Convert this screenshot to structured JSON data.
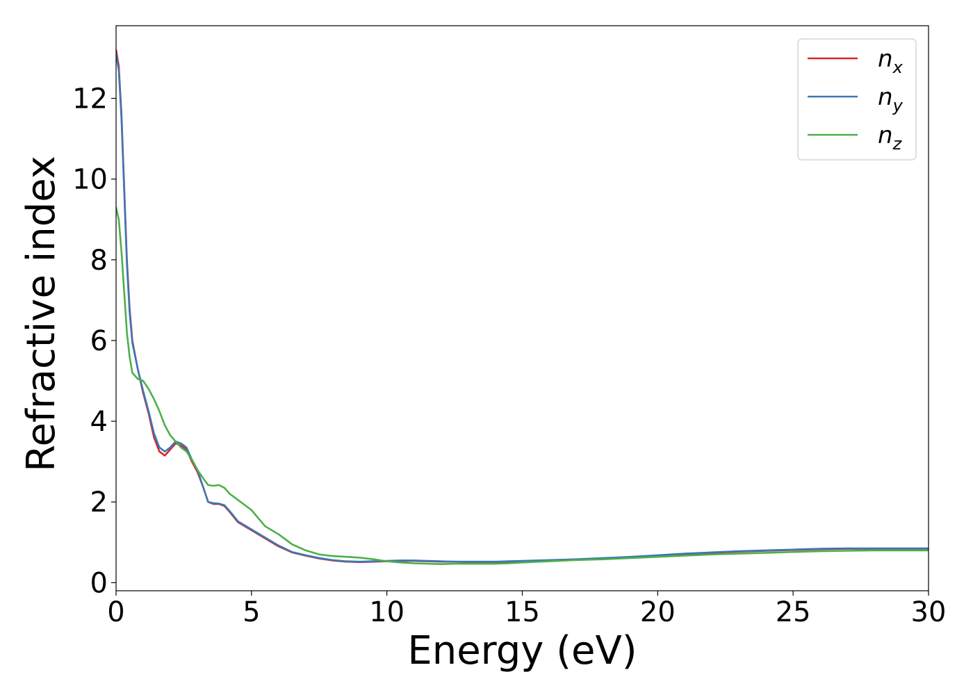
{
  "chart_data": {
    "type": "line",
    "xlabel": "Energy (eV)",
    "ylabel": "Refractive index",
    "xlim": [
      0,
      30
    ],
    "ylim": [
      -0.2,
      13.8
    ],
    "xticks": [
      0,
      5,
      10,
      15,
      20,
      25,
      30
    ],
    "xtick_labels": [
      "0",
      "5",
      "10",
      "15",
      "20",
      "25",
      "30"
    ],
    "yticks": [
      0,
      2,
      4,
      6,
      8,
      10,
      12
    ],
    "ytick_labels": [
      "0",
      "2",
      "4",
      "6",
      "8",
      "10",
      "12"
    ],
    "grid": false,
    "legend_position": "top-right",
    "series": [
      {
        "name": "n_x",
        "legend_base": "n",
        "legend_sub": "x",
        "color": "#d62728",
        "x": [
          0,
          0.1,
          0.2,
          0.3,
          0.4,
          0.5,
          0.6,
          0.8,
          1.0,
          1.2,
          1.4,
          1.6,
          1.8,
          2.0,
          2.2,
          2.4,
          2.6,
          2.8,
          3.0,
          3.2,
          3.4,
          3.6,
          3.8,
          4.0,
          4.2,
          4.5,
          5.0,
          5.5,
          6.0,
          6.5,
          7.0,
          7.5,
          8.0,
          8.5,
          9.0,
          9.5,
          10.0,
          10.5,
          11.0,
          11.5,
          12.0,
          12.5,
          13.0,
          13.5,
          14.0,
          14.5,
          15.0,
          16.0,
          17.0,
          18.0,
          19.0,
          20.0,
          21.0,
          22.0,
          23.0,
          24.0,
          25.0,
          26.0,
          27.0,
          28.0,
          29.0,
          30.0
        ],
        "y": [
          13.2,
          12.8,
          11.6,
          9.8,
          8.0,
          6.8,
          6.0,
          5.3,
          4.7,
          4.2,
          3.6,
          3.25,
          3.15,
          3.3,
          3.45,
          3.4,
          3.3,
          3.0,
          2.75,
          2.4,
          2.0,
          1.95,
          1.95,
          1.9,
          1.75,
          1.5,
          1.3,
          1.1,
          0.9,
          0.75,
          0.67,
          0.6,
          0.55,
          0.52,
          0.51,
          0.52,
          0.53,
          0.54,
          0.54,
          0.53,
          0.52,
          0.52,
          0.51,
          0.51,
          0.51,
          0.52,
          0.53,
          0.55,
          0.57,
          0.6,
          0.63,
          0.67,
          0.71,
          0.74,
          0.77,
          0.79,
          0.81,
          0.83,
          0.84,
          0.84,
          0.84,
          0.84
        ]
      },
      {
        "name": "n_y",
        "legend_base": "n",
        "legend_sub": "y",
        "color": "#3b78b5",
        "x": [
          0,
          0.1,
          0.2,
          0.3,
          0.4,
          0.5,
          0.6,
          0.8,
          1.0,
          1.2,
          1.4,
          1.6,
          1.8,
          2.0,
          2.2,
          2.4,
          2.6,
          2.8,
          3.0,
          3.2,
          3.4,
          3.6,
          3.8,
          4.0,
          4.2,
          4.5,
          5.0,
          5.5,
          6.0,
          6.5,
          7.0,
          7.5,
          8.0,
          8.5,
          9.0,
          9.5,
          10.0,
          10.5,
          11.0,
          11.5,
          12.0,
          12.5,
          13.0,
          13.5,
          14.0,
          14.5,
          15.0,
          16.0,
          17.0,
          18.0,
          19.0,
          20.0,
          21.0,
          22.0,
          23.0,
          24.0,
          25.0,
          26.0,
          27.0,
          28.0,
          29.0,
          30.0
        ],
        "y": [
          13.1,
          12.7,
          11.5,
          9.7,
          7.9,
          6.7,
          5.95,
          5.3,
          4.75,
          4.25,
          3.7,
          3.35,
          3.25,
          3.35,
          3.5,
          3.45,
          3.35,
          3.05,
          2.8,
          2.4,
          2.0,
          1.97,
          1.96,
          1.92,
          1.77,
          1.52,
          1.32,
          1.12,
          0.92,
          0.76,
          0.68,
          0.61,
          0.56,
          0.53,
          0.52,
          0.53,
          0.54,
          0.55,
          0.55,
          0.54,
          0.53,
          0.52,
          0.52,
          0.52,
          0.52,
          0.53,
          0.54,
          0.56,
          0.58,
          0.61,
          0.64,
          0.68,
          0.72,
          0.75,
          0.78,
          0.8,
          0.82,
          0.84,
          0.85,
          0.85,
          0.85,
          0.85
        ]
      },
      {
        "name": "n_z",
        "legend_base": "n",
        "legend_sub": "z",
        "color": "#4daf4a",
        "x": [
          0,
          0.1,
          0.2,
          0.3,
          0.4,
          0.5,
          0.6,
          0.8,
          1.0,
          1.2,
          1.4,
          1.6,
          1.8,
          2.0,
          2.2,
          2.4,
          2.6,
          2.8,
          3.0,
          3.2,
          3.4,
          3.6,
          3.8,
          4.0,
          4.2,
          4.5,
          5.0,
          5.5,
          6.0,
          6.5,
          7.0,
          7.5,
          8.0,
          8.5,
          9.0,
          9.5,
          10.0,
          10.5,
          11.0,
          11.5,
          12.0,
          12.5,
          13.0,
          13.5,
          14.0,
          14.5,
          15.0,
          16.0,
          17.0,
          18.0,
          19.0,
          20.0,
          21.0,
          22.0,
          23.0,
          24.0,
          25.0,
          26.0,
          27.0,
          28.0,
          29.0,
          30.0
        ],
        "y": [
          9.3,
          9.0,
          8.2,
          7.2,
          6.2,
          5.6,
          5.2,
          5.05,
          5.0,
          4.8,
          4.55,
          4.25,
          3.9,
          3.65,
          3.5,
          3.35,
          3.25,
          3.05,
          2.8,
          2.6,
          2.42,
          2.4,
          2.42,
          2.35,
          2.2,
          2.05,
          1.8,
          1.4,
          1.2,
          0.95,
          0.8,
          0.7,
          0.66,
          0.64,
          0.62,
          0.58,
          0.53,
          0.5,
          0.48,
          0.47,
          0.46,
          0.47,
          0.47,
          0.47,
          0.47,
          0.48,
          0.5,
          0.53,
          0.56,
          0.58,
          0.61,
          0.64,
          0.67,
          0.7,
          0.72,
          0.74,
          0.76,
          0.78,
          0.79,
          0.8,
          0.8,
          0.8
        ]
      }
    ]
  }
}
